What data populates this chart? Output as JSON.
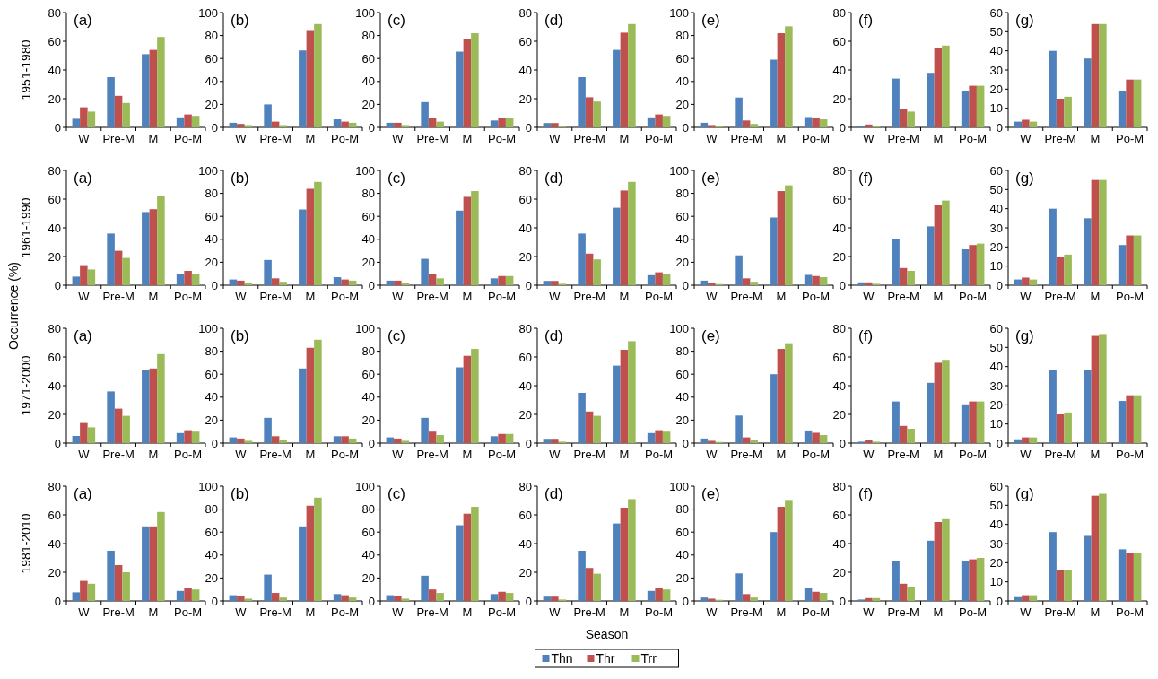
{
  "chart_data": [
    {
      "type": "bar",
      "title": "(a)",
      "ylabel": "1951-1980",
      "annotations": [
        "Occurrence (%)"
      ],
      "categories": [
        "W",
        "Pre-M",
        "M",
        "Po-M"
      ],
      "ylim": [
        0,
        80
      ],
      "yticks": [
        0,
        20,
        40,
        60,
        80
      ],
      "series": [
        {
          "color": "#4f81bd",
          "values": [
            6,
            35,
            51,
            7
          ]
        },
        {
          "color": "#c0504d",
          "values": [
            14,
            22,
            54,
            9
          ]
        },
        {
          "color": "#9bbb59",
          "values": [
            11,
            17,
            63,
            8
          ]
        }
      ]
    },
    {
      "type": "bar",
      "title": "(b)",
      "categories": [
        "W",
        "Pre-M",
        "M",
        "Po-M"
      ],
      "ylim": [
        0,
        100
      ],
      "yticks": [
        0,
        20,
        40,
        60,
        80,
        100
      ],
      "series": [
        {
          "color": "#4f81bd",
          "values": [
            4,
            20,
            67,
            7
          ]
        },
        {
          "color": "#c0504d",
          "values": [
            3,
            5,
            84,
            5
          ]
        },
        {
          "color": "#9bbb59",
          "values": [
            2,
            2,
            90,
            4
          ]
        }
      ]
    },
    {
      "type": "bar",
      "title": "(c)",
      "categories": [
        "W",
        "Pre-M",
        "M",
        "Po-M"
      ],
      "ylim": [
        0,
        100
      ],
      "yticks": [
        0,
        20,
        40,
        60,
        80,
        100
      ],
      "series": [
        {
          "color": "#4f81bd",
          "values": [
            4,
            22,
            66,
            6
          ]
        },
        {
          "color": "#c0504d",
          "values": [
            4,
            8,
            77,
            8
          ]
        },
        {
          "color": "#9bbb59",
          "values": [
            2,
            5,
            82,
            8
          ]
        }
      ]
    },
    {
      "type": "bar",
      "title": "(d)",
      "categories": [
        "W",
        "Pre-M",
        "M",
        "Po-M"
      ],
      "ylim": [
        0,
        80
      ],
      "yticks": [
        0,
        20,
        40,
        60,
        80
      ],
      "series": [
        {
          "color": "#4f81bd",
          "values": [
            3,
            35,
            54,
            7
          ]
        },
        {
          "color": "#c0504d",
          "values": [
            3,
            21,
            66,
            9
          ]
        },
        {
          "color": "#9bbb59",
          "values": [
            1,
            18,
            72,
            8
          ]
        }
      ]
    },
    {
      "type": "bar",
      "title": "(e)",
      "categories": [
        "W",
        "Pre-M",
        "M",
        "Po-M"
      ],
      "ylim": [
        0,
        100
      ],
      "yticks": [
        0,
        20,
        40,
        60,
        80,
        100
      ],
      "series": [
        {
          "color": "#4f81bd",
          "values": [
            4,
            26,
            59,
            9
          ]
        },
        {
          "color": "#c0504d",
          "values": [
            2,
            6,
            82,
            8
          ]
        },
        {
          "color": "#9bbb59",
          "values": [
            1,
            3,
            88,
            7
          ]
        }
      ]
    },
    {
      "type": "bar",
      "title": "(f)",
      "categories": [
        "W",
        "Pre-M",
        "M",
        "Po-M"
      ],
      "ylim": [
        0,
        80
      ],
      "yticks": [
        0,
        20,
        40,
        60,
        80
      ],
      "series": [
        {
          "color": "#4f81bd",
          "values": [
            1,
            34,
            38,
            25
          ]
        },
        {
          "color": "#c0504d",
          "values": [
            2,
            13,
            55,
            29
          ]
        },
        {
          "color": "#9bbb59",
          "values": [
            1,
            11,
            57,
            29
          ]
        }
      ]
    },
    {
      "type": "bar",
      "title": "(g)",
      "categories": [
        "W",
        "Pre-M",
        "M",
        "Po-M"
      ],
      "ylim": [
        0,
        60
      ],
      "yticks": [
        0,
        10,
        20,
        30,
        40,
        50,
        60
      ],
      "series": [
        {
          "color": "#4f81bd",
          "values": [
            3,
            40,
            36,
            19
          ]
        },
        {
          "color": "#c0504d",
          "values": [
            4,
            15,
            54,
            25
          ]
        },
        {
          "color": "#9bbb59",
          "values": [
            3,
            16,
            54,
            25
          ]
        }
      ]
    },
    {
      "type": "bar",
      "title": "(a)",
      "ylabel": "1961-1990",
      "categories": [
        "W",
        "Pre-M",
        "M",
        "Po-M"
      ],
      "ylim": [
        0,
        80
      ],
      "yticks": [
        0,
        20,
        40,
        60,
        80
      ],
      "series": [
        {
          "color": "#4f81bd",
          "values": [
            6,
            36,
            51,
            8
          ]
        },
        {
          "color": "#c0504d",
          "values": [
            14,
            24,
            53,
            10
          ]
        },
        {
          "color": "#9bbb59",
          "values": [
            11,
            19,
            62,
            8
          ]
        }
      ]
    },
    {
      "type": "bar",
      "title": "(b)",
      "categories": [
        "W",
        "Pre-M",
        "M",
        "Po-M"
      ],
      "ylim": [
        0,
        100
      ],
      "yticks": [
        0,
        20,
        40,
        60,
        80,
        100
      ],
      "series": [
        {
          "color": "#4f81bd",
          "values": [
            5,
            22,
            66,
            7
          ]
        },
        {
          "color": "#c0504d",
          "values": [
            4,
            6,
            84,
            5
          ]
        },
        {
          "color": "#9bbb59",
          "values": [
            2,
            3,
            90,
            4
          ]
        }
      ]
    },
    {
      "type": "bar",
      "title": "(c)",
      "categories": [
        "W",
        "Pre-M",
        "M",
        "Po-M"
      ],
      "ylim": [
        0,
        100
      ],
      "yticks": [
        0,
        20,
        40,
        60,
        80,
        100
      ],
      "series": [
        {
          "color": "#4f81bd",
          "values": [
            4,
            23,
            65,
            6
          ]
        },
        {
          "color": "#c0504d",
          "values": [
            4,
            10,
            77,
            8
          ]
        },
        {
          "color": "#9bbb59",
          "values": [
            2,
            6,
            82,
            8
          ]
        }
      ]
    },
    {
      "type": "bar",
      "title": "(d)",
      "categories": [
        "W",
        "Pre-M",
        "M",
        "Po-M"
      ],
      "ylim": [
        0,
        80
      ],
      "yticks": [
        0,
        20,
        40,
        60,
        80
      ],
      "series": [
        {
          "color": "#4f81bd",
          "values": [
            3,
            36,
            54,
            7
          ]
        },
        {
          "color": "#c0504d",
          "values": [
            3,
            22,
            66,
            9
          ]
        },
        {
          "color": "#9bbb59",
          "values": [
            1,
            18,
            72,
            8
          ]
        }
      ]
    },
    {
      "type": "bar",
      "title": "(e)",
      "categories": [
        "W",
        "Pre-M",
        "M",
        "Po-M"
      ],
      "ylim": [
        0,
        100
      ],
      "yticks": [
        0,
        20,
        40,
        60,
        80,
        100
      ],
      "series": [
        {
          "color": "#4f81bd",
          "values": [
            4,
            26,
            59,
            9
          ]
        },
        {
          "color": "#c0504d",
          "values": [
            2,
            6,
            82,
            8
          ]
        },
        {
          "color": "#9bbb59",
          "values": [
            1,
            3,
            87,
            7
          ]
        }
      ]
    },
    {
      "type": "bar",
      "title": "(f)",
      "categories": [
        "W",
        "Pre-M",
        "M",
        "Po-M"
      ],
      "ylim": [
        0,
        80
      ],
      "yticks": [
        0,
        20,
        40,
        60,
        80
      ],
      "series": [
        {
          "color": "#4f81bd",
          "values": [
            2,
            32,
            41,
            25
          ]
        },
        {
          "color": "#c0504d",
          "values": [
            2,
            12,
            56,
            28
          ]
        },
        {
          "color": "#9bbb59",
          "values": [
            1,
            10,
            59,
            29
          ]
        }
      ]
    },
    {
      "type": "bar",
      "title": "(g)",
      "categories": [
        "W",
        "Pre-M",
        "M",
        "Po-M"
      ],
      "ylim": [
        0,
        60
      ],
      "yticks": [
        0,
        10,
        20,
        30,
        40,
        50,
        60
      ],
      "series": [
        {
          "color": "#4f81bd",
          "values": [
            3,
            40,
            35,
            21
          ]
        },
        {
          "color": "#c0504d",
          "values": [
            4,
            15,
            55,
            26
          ]
        },
        {
          "color": "#9bbb59",
          "values": [
            3,
            16,
            55,
            26
          ]
        }
      ]
    },
    {
      "type": "bar",
      "title": "(a)",
      "ylabel": "1971-2000",
      "categories": [
        "W",
        "Pre-M",
        "M",
        "Po-M"
      ],
      "ylim": [
        0,
        80
      ],
      "yticks": [
        0,
        20,
        40,
        60,
        80
      ],
      "series": [
        {
          "color": "#4f81bd",
          "values": [
            5,
            36,
            51,
            7
          ]
        },
        {
          "color": "#c0504d",
          "values": [
            14,
            24,
            52,
            9
          ]
        },
        {
          "color": "#9bbb59",
          "values": [
            11,
            19,
            62,
            8
          ]
        }
      ]
    },
    {
      "type": "bar",
      "title": "(b)",
      "categories": [
        "W",
        "Pre-M",
        "M",
        "Po-M"
      ],
      "ylim": [
        0,
        100
      ],
      "yticks": [
        0,
        20,
        40,
        60,
        80,
        100
      ],
      "series": [
        {
          "color": "#4f81bd",
          "values": [
            5,
            22,
            65,
            6
          ]
        },
        {
          "color": "#c0504d",
          "values": [
            4,
            6,
            83,
            6
          ]
        },
        {
          "color": "#9bbb59",
          "values": [
            2,
            3,
            90,
            4
          ]
        }
      ]
    },
    {
      "type": "bar",
      "title": "(c)",
      "categories": [
        "W",
        "Pre-M",
        "M",
        "Po-M"
      ],
      "ylim": [
        0,
        100
      ],
      "yticks": [
        0,
        20,
        40,
        60,
        80,
        100
      ],
      "series": [
        {
          "color": "#4f81bd",
          "values": [
            5,
            22,
            66,
            6
          ]
        },
        {
          "color": "#c0504d",
          "values": [
            4,
            10,
            76,
            8
          ]
        },
        {
          "color": "#9bbb59",
          "values": [
            2,
            7,
            82,
            8
          ]
        }
      ]
    },
    {
      "type": "bar",
      "title": "(d)",
      "categories": [
        "W",
        "Pre-M",
        "M",
        "Po-M"
      ],
      "ylim": [
        0,
        80
      ],
      "yticks": [
        0,
        20,
        40,
        60,
        80
      ],
      "series": [
        {
          "color": "#4f81bd",
          "values": [
            3,
            35,
            54,
            7
          ]
        },
        {
          "color": "#c0504d",
          "values": [
            3,
            22,
            65,
            9
          ]
        },
        {
          "color": "#9bbb59",
          "values": [
            1,
            19,
            71,
            8
          ]
        }
      ]
    },
    {
      "type": "bar",
      "title": "(e)",
      "categories": [
        "W",
        "Pre-M",
        "M",
        "Po-M"
      ],
      "ylim": [
        0,
        100
      ],
      "yticks": [
        0,
        20,
        40,
        60,
        80,
        100
      ],
      "series": [
        {
          "color": "#4f81bd",
          "values": [
            4,
            24,
            60,
            11
          ]
        },
        {
          "color": "#c0504d",
          "values": [
            2,
            5,
            82,
            9
          ]
        },
        {
          "color": "#9bbb59",
          "values": [
            1,
            3,
            87,
            7
          ]
        }
      ]
    },
    {
      "type": "bar",
      "title": "(f)",
      "categories": [
        "W",
        "Pre-M",
        "M",
        "Po-M"
      ],
      "ylim": [
        0,
        80
      ],
      "yticks": [
        0,
        20,
        40,
        60,
        80
      ],
      "series": [
        {
          "color": "#4f81bd",
          "values": [
            1,
            29,
            42,
            27
          ]
        },
        {
          "color": "#c0504d",
          "values": [
            2,
            12,
            56,
            29
          ]
        },
        {
          "color": "#9bbb59",
          "values": [
            1,
            10,
            58,
            29
          ]
        }
      ]
    },
    {
      "type": "bar",
      "title": "(g)",
      "categories": [
        "W",
        "Pre-M",
        "M",
        "Po-M"
      ],
      "ylim": [
        0,
        60
      ],
      "yticks": [
        0,
        10,
        20,
        30,
        40,
        50,
        60
      ],
      "series": [
        {
          "color": "#4f81bd",
          "values": [
            2,
            38,
            38,
            22
          ]
        },
        {
          "color": "#c0504d",
          "values": [
            3,
            15,
            56,
            25
          ]
        },
        {
          "color": "#9bbb59",
          "values": [
            3,
            16,
            57,
            25
          ]
        }
      ]
    },
    {
      "type": "bar",
      "title": "(a)",
      "ylabel": "1981-2010",
      "categories": [
        "W",
        "Pre-M",
        "M",
        "Po-M"
      ],
      "ylim": [
        0,
        80
      ],
      "yticks": [
        0,
        20,
        40,
        60,
        80
      ],
      "series": [
        {
          "color": "#4f81bd",
          "values": [
            6,
            35,
            52,
            7
          ]
        },
        {
          "color": "#c0504d",
          "values": [
            14,
            25,
            52,
            9
          ]
        },
        {
          "color": "#9bbb59",
          "values": [
            12,
            20,
            62,
            8
          ]
        }
      ]
    },
    {
      "type": "bar",
      "title": "(b)",
      "categories": [
        "W",
        "Pre-M",
        "M",
        "Po-M"
      ],
      "ylim": [
        0,
        100
      ],
      "yticks": [
        0,
        20,
        40,
        60,
        80,
        100
      ],
      "series": [
        {
          "color": "#4f81bd",
          "values": [
            5,
            23,
            65,
            6
          ]
        },
        {
          "color": "#c0504d",
          "values": [
            4,
            7,
            83,
            5
          ]
        },
        {
          "color": "#9bbb59",
          "values": [
            2,
            3,
            90,
            3
          ]
        }
      ]
    },
    {
      "type": "bar",
      "title": "(c)",
      "categories": [
        "W",
        "Pre-M",
        "M",
        "Po-M"
      ],
      "ylim": [
        0,
        100
      ],
      "yticks": [
        0,
        20,
        40,
        60,
        80,
        100
      ],
      "series": [
        {
          "color": "#4f81bd",
          "values": [
            5,
            22,
            66,
            6
          ]
        },
        {
          "color": "#c0504d",
          "values": [
            4,
            10,
            76,
            8
          ]
        },
        {
          "color": "#9bbb59",
          "values": [
            2,
            7,
            82,
            7
          ]
        }
      ]
    },
    {
      "type": "bar",
      "title": "(d)",
      "xlabel": "Season",
      "legend": "bottom",
      "categories": [
        "W",
        "Pre-M",
        "M",
        "Po-M"
      ],
      "ylim": [
        0,
        80
      ],
      "yticks": [
        0,
        20,
        40,
        60,
        80
      ],
      "series": [
        {
          "name": "Thn",
          "color": "#4f81bd",
          "values": [
            3,
            35,
            54,
            7
          ]
        },
        {
          "name": "Thr",
          "color": "#c0504d",
          "values": [
            3,
            23,
            65,
            9
          ]
        },
        {
          "name": "Trr",
          "color": "#9bbb59",
          "values": [
            1,
            19,
            71,
            8
          ]
        }
      ]
    },
    {
      "type": "bar",
      "title": "(e)",
      "categories": [
        "W",
        "Pre-M",
        "M",
        "Po-M"
      ],
      "ylim": [
        0,
        100
      ],
      "yticks": [
        0,
        20,
        40,
        60,
        80,
        100
      ],
      "series": [
        {
          "color": "#4f81bd",
          "values": [
            3,
            24,
            60,
            11
          ]
        },
        {
          "color": "#c0504d",
          "values": [
            2,
            6,
            82,
            8
          ]
        },
        {
          "color": "#9bbb59",
          "values": [
            1,
            3,
            88,
            7
          ]
        }
      ]
    },
    {
      "type": "bar",
      "title": "(f)",
      "categories": [
        "W",
        "Pre-M",
        "M",
        "Po-M"
      ],
      "ylim": [
        0,
        80
      ],
      "yticks": [
        0,
        20,
        40,
        60,
        80
      ],
      "series": [
        {
          "color": "#4f81bd",
          "values": [
            1,
            28,
            42,
            28
          ]
        },
        {
          "color": "#c0504d",
          "values": [
            2,
            12,
            55,
            29
          ]
        },
        {
          "color": "#9bbb59",
          "values": [
            2,
            10,
            57,
            30
          ]
        }
      ]
    },
    {
      "type": "bar",
      "title": "(g)",
      "categories": [
        "W",
        "Pre-M",
        "M",
        "Po-M"
      ],
      "ylim": [
        0,
        60
      ],
      "yticks": [
        0,
        10,
        20,
        30,
        40,
        50,
        60
      ],
      "series": [
        {
          "color": "#4f81bd",
          "values": [
            2,
            36,
            34,
            27
          ]
        },
        {
          "color": "#c0504d",
          "values": [
            3,
            16,
            55,
            25
          ]
        },
        {
          "color": "#9bbb59",
          "values": [
            3,
            16,
            56,
            25
          ]
        }
      ]
    }
  ]
}
